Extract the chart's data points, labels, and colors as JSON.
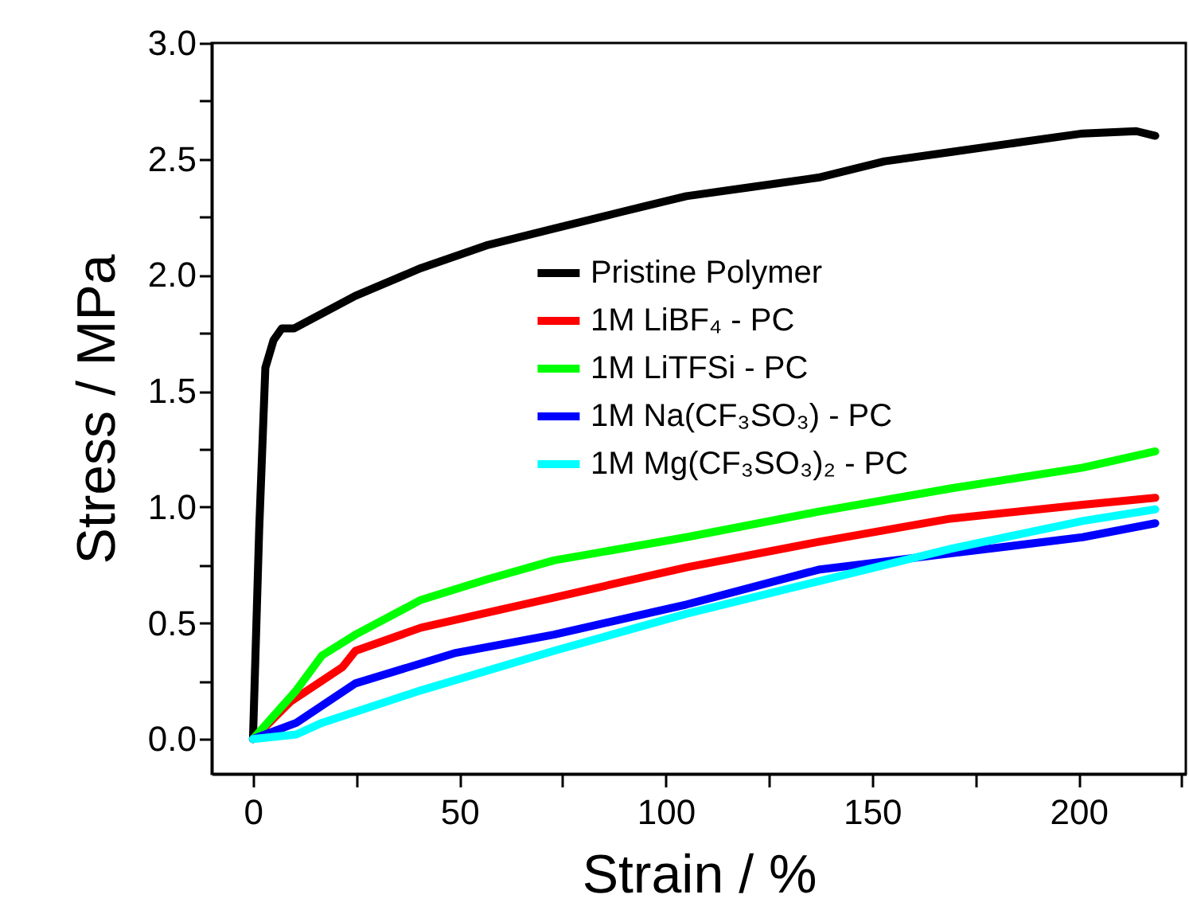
{
  "chart_data": {
    "type": "line",
    "xlabel": "Strain / %",
    "ylabel": "Stress / MPa",
    "xlim": [
      -10,
      226
    ],
    "ylim": [
      -0.15,
      3.0
    ],
    "xticks": [
      0,
      {
        "value": 25,
        "label": null
      },
      50,
      {
        "value": 75,
        "label": null
      },
      100,
      {
        "value": 125,
        "label": null
      },
      150,
      {
        "value": 175,
        "label": null
      },
      200,
      {
        "value": 225,
        "label": null
      }
    ],
    "yticks": [
      {
        "value": 0,
        "label": "0.0"
      },
      {
        "value": 0.25,
        "label": null
      },
      {
        "value": 0.5,
        "label": "0.5"
      },
      {
        "value": 0.75,
        "label": null
      },
      {
        "value": 1,
        "label": "1.0"
      },
      {
        "value": 1.25,
        "label": null
      },
      {
        "value": 1.5,
        "label": "1.5"
      },
      {
        "value": 1.75,
        "label": null
      },
      {
        "value": 2,
        "label": "2.0"
      },
      {
        "value": 2.25,
        "label": null
      },
      {
        "value": 2.5,
        "label": "2.5"
      },
      {
        "value": 2.75,
        "label": null
      },
      {
        "value": 3,
        "label": "3.0"
      }
    ],
    "legend": "top",
    "line_style": "solid",
    "series": [
      {
        "name": "Pristine Polymer",
        "color": "#000000",
        "x": [
          0,
          1.5,
          3,
          5,
          7,
          10,
          24.8,
          40.7,
          57,
          72.9,
          88.8,
          105,
          121,
          137,
          153,
          169,
          185,
          201,
          214,
          218.6
        ],
        "values": [
          0,
          0.9,
          1.6,
          1.72,
          1.77,
          1.77,
          1.91,
          2.03,
          2.13,
          2.2,
          2.27,
          2.34,
          2.38,
          2.42,
          2.49,
          2.53,
          2.57,
          2.61,
          2.62,
          2.6
        ]
      },
      {
        "name": "1M LiBF₄ - PC",
        "color": "#ff0000",
        "x": [
          0,
          9,
          21.7,
          24.8,
          40.7,
          72.9,
          105,
          137,
          169,
          201,
          218.6
        ],
        "values": [
          0,
          0.16,
          0.31,
          0.38,
          0.48,
          0.61,
          0.74,
          0.85,
          0.95,
          1.01,
          1.04
        ]
      },
      {
        "name": "1M LiTFSi - PC",
        "color": "#00ff00",
        "x": [
          0,
          10.5,
          16.7,
          24.8,
          40.7,
          57,
          72.9,
          105,
          137,
          169,
          201,
          218.6
        ],
        "values": [
          0,
          0.21,
          0.36,
          0.45,
          0.6,
          0.69,
          0.77,
          0.87,
          0.98,
          1.08,
          1.17,
          1.24
        ]
      },
      {
        "name": "1M Na(CF₃SO₃) - PC",
        "color": "#0000ff",
        "x": [
          0,
          10.5,
          24.8,
          48.8,
          72.9,
          105,
          137,
          169,
          201,
          218.6
        ],
        "values": [
          0,
          0.07,
          0.24,
          0.37,
          0.45,
          0.58,
          0.73,
          0.8,
          0.87,
          0.93
        ]
      },
      {
        "name": "1M Mg(CF₃SO₃)₂ - PC",
        "color": "#00ffff",
        "x": [
          0,
          10.5,
          16.7,
          40.7,
          72.9,
          105,
          137,
          169,
          201,
          218.6
        ],
        "values": [
          0,
          0.02,
          0.07,
          0.21,
          0.38,
          0.54,
          0.68,
          0.82,
          0.94,
          0.99
        ]
      }
    ]
  }
}
